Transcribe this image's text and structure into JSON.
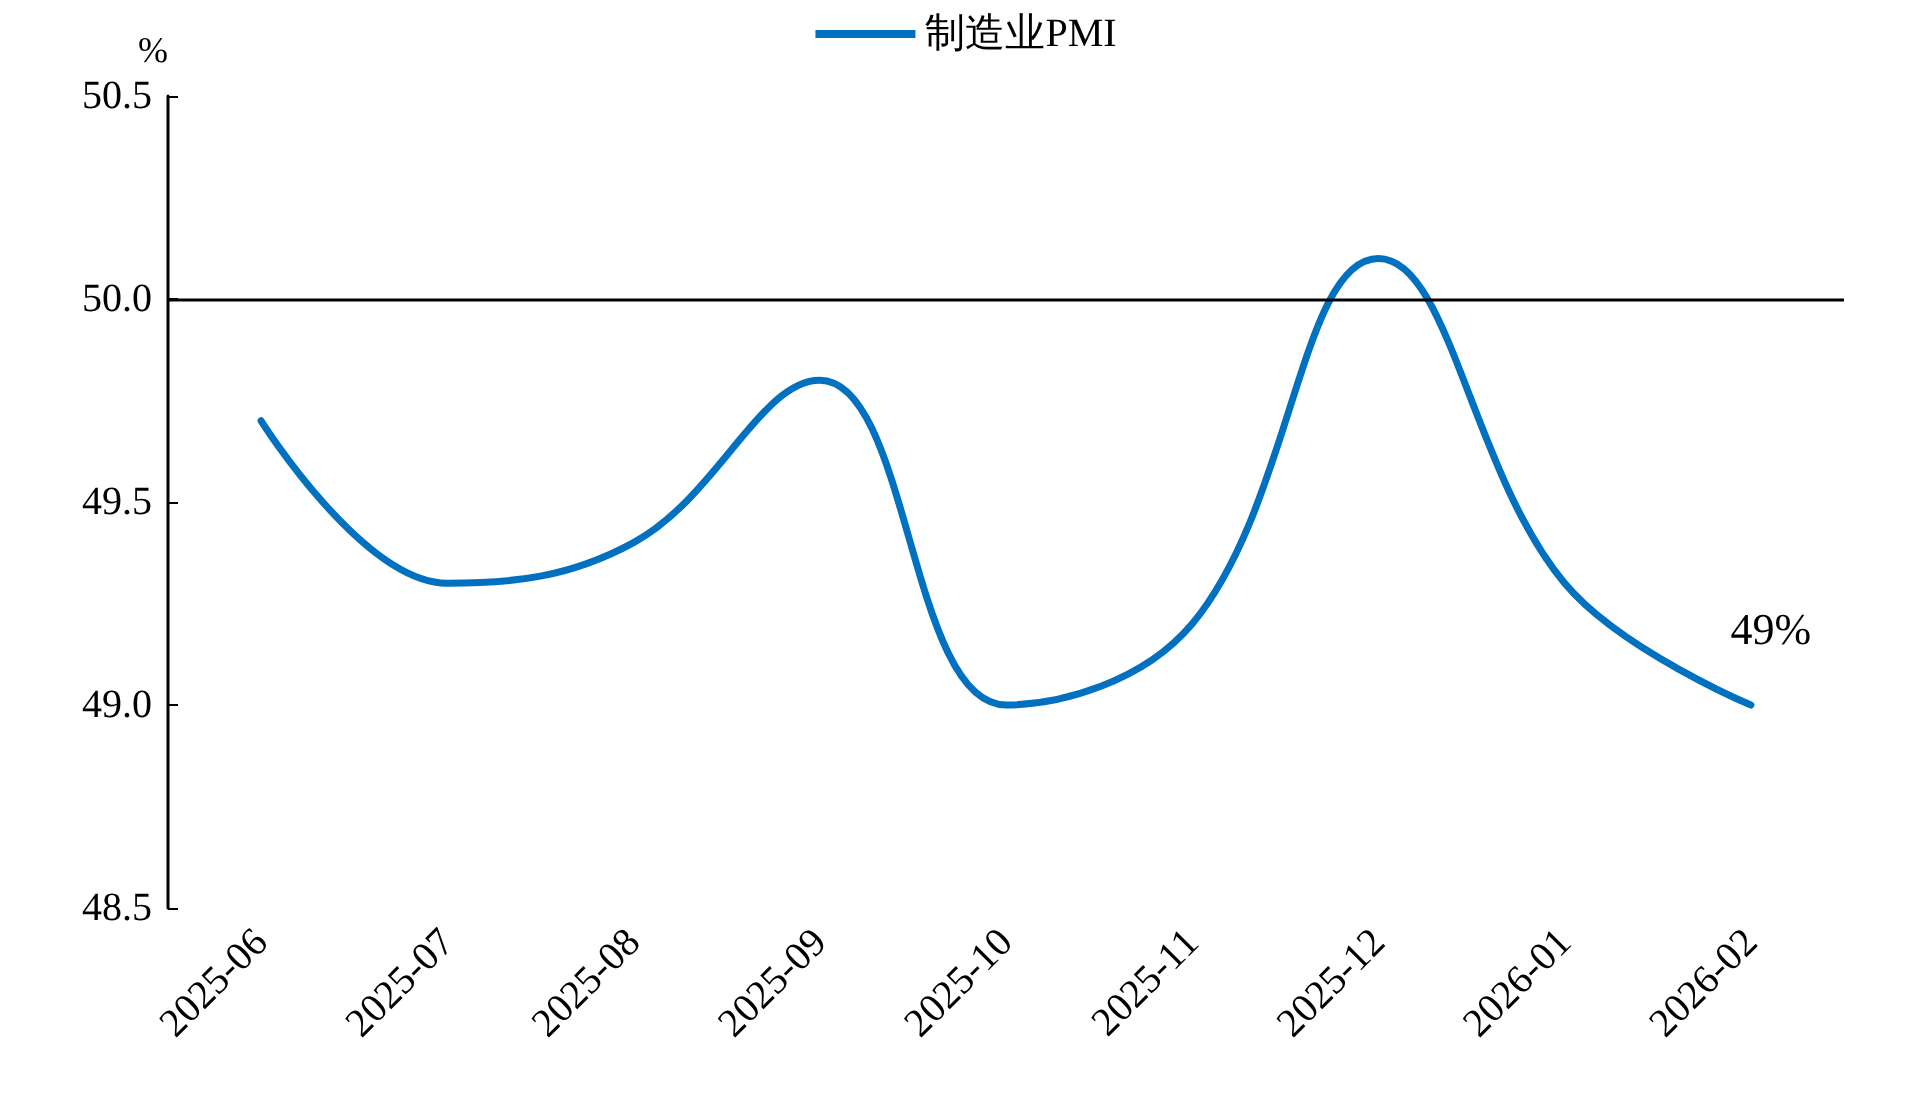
{
  "chart_data": {
    "type": "line",
    "ylabel": "%",
    "categories": [
      "2025-06",
      "2025-07",
      "2025-08",
      "2025-09",
      "2025-10",
      "2025-11",
      "2025-12",
      "2026-01",
      "2026-02"
    ],
    "series": [
      {
        "name": "制造业PMI",
        "color": "#0070c0",
        "values": [
          49.7,
          49.3,
          49.4,
          49.8,
          49.0,
          49.2,
          50.1,
          49.3,
          49.0
        ]
      }
    ],
    "ylim": [
      48.5,
      50.5
    ],
    "yticks": [
      {
        "value": 48.5,
        "label": "48.5"
      },
      {
        "value": 49,
        "label": "49.0"
      },
      {
        "value": 49.5,
        "label": "49.5"
      },
      {
        "value": 50,
        "label": "50.0"
      },
      {
        "value": 50.5,
        "label": "50.5"
      }
    ],
    "ref_lines": [
      {
        "axis": "y",
        "value": 50,
        "color": "#000000"
      }
    ],
    "annotations": [
      {
        "text": "49%",
        "x": "2026-02",
        "y": 49.0
      }
    ],
    "legend": "top",
    "grid": false,
    "marker": "none",
    "line_style": "solid"
  }
}
